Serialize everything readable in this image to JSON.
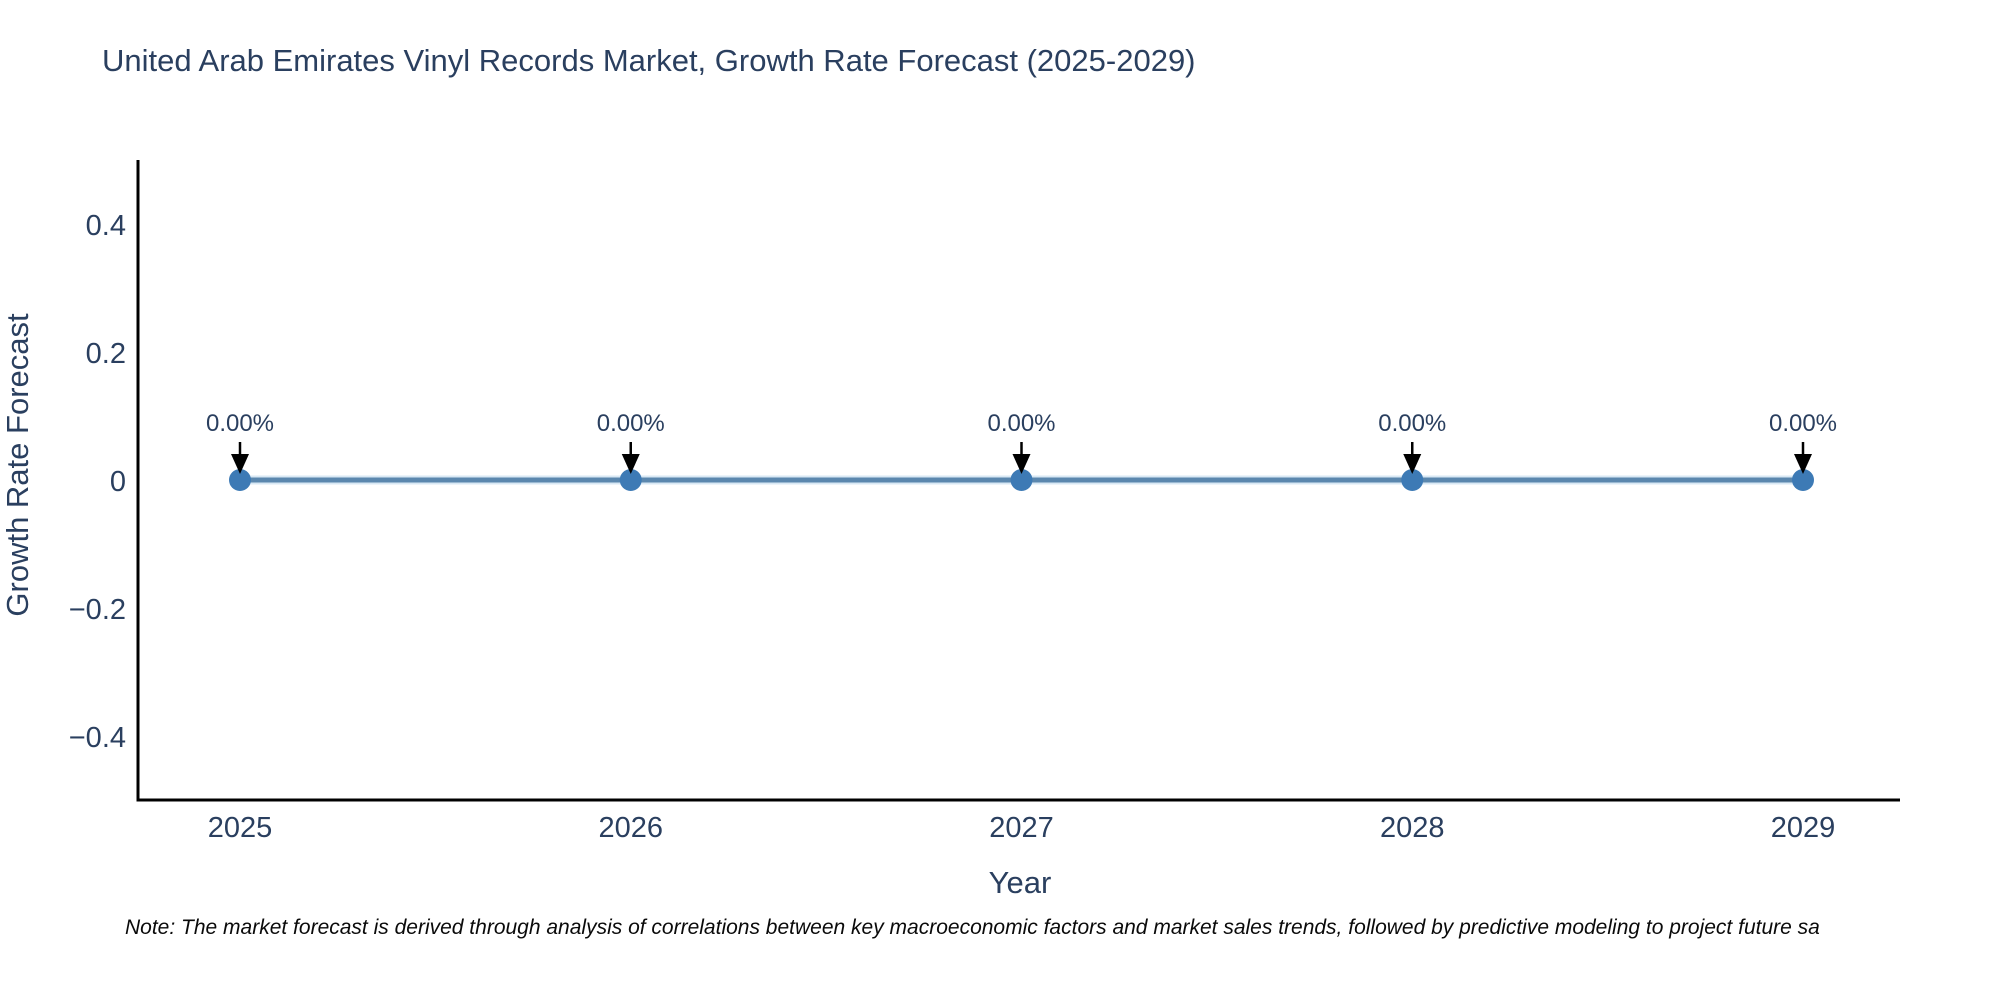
{
  "chart_data": {
    "type": "line",
    "title": "United Arab Emirates Vinyl Records Market, Growth Rate Forecast (2025-2029)",
    "xlabel": "Year",
    "ylabel": "Growth Rate Forecast",
    "x": [
      "2025",
      "2026",
      "2027",
      "2028",
      "2029"
    ],
    "y": [
      0,
      0,
      0,
      0,
      0
    ],
    "point_labels": [
      "0.00%",
      "0.00%",
      "0.00%",
      "0.00%",
      "0.00%"
    ],
    "xtick_labels": [
      "2025",
      "2026",
      "2027",
      "2028",
      "2029"
    ],
    "yticks": [
      0.4,
      0.2,
      0,
      -0.2,
      -0.4
    ],
    "ytick_labels": [
      "0.4",
      "0.2",
      "0",
      "−0.2",
      "−0.4"
    ],
    "ylim": [
      -0.5,
      0.5
    ],
    "grid": false,
    "legend": "none",
    "text_color": "#2a3f5f",
    "axis_color": "#000000",
    "line_color": "#5b87ae",
    "line_halo_color": "#d9e8f4",
    "marker_color": "#3d7ab5",
    "annotation_arrow_color": "#000000"
  },
  "footnote": "Note: The market forecast is derived through analysis of correlations between key macroeconomic factors and market sales trends, followed by predictive modeling to project future sa"
}
